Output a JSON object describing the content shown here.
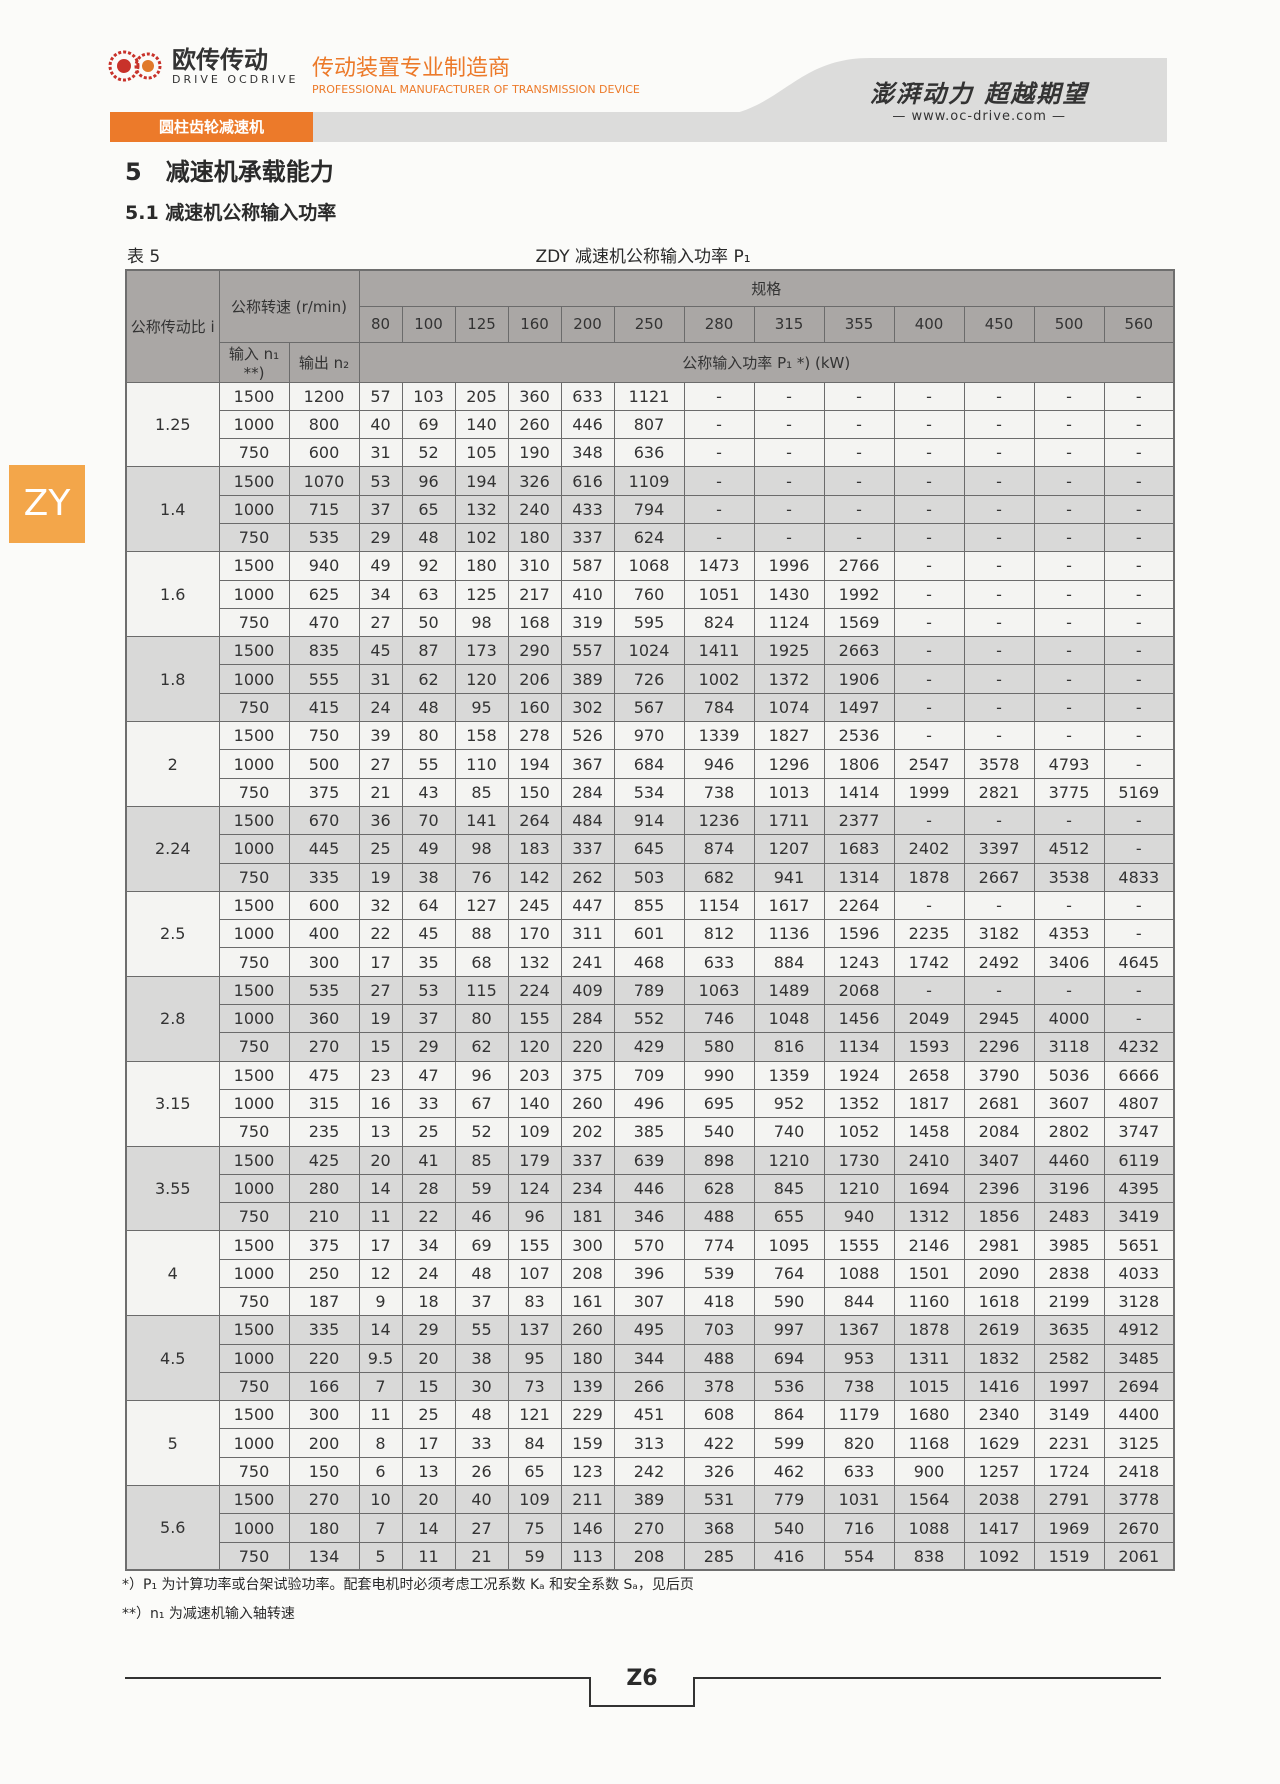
{
  "header": {
    "brand_cn": "欧传传动",
    "brand_en": "DRIVE OCDRIVE",
    "slogan_cn": "传动装置专业制造商",
    "slogan_en": "PROFESSIONAL MANUFACTURER OF TRANSMISSION DEVICE",
    "motto": "澎湃动力 超越期望",
    "website": "www.oc-drive.com",
    "category": "圆柱齿轮减速机",
    "accent": "#ec7a2a"
  },
  "side_tab": "ZY",
  "section_title": "5　减速机承载能力",
  "subsection_title": "5.1  减速机公称输入功率",
  "table_label": "表 5",
  "table_caption": "ZDY 减速机公称输入功率 P₁",
  "table": {
    "h_ratio": "公称传动比 i",
    "h_speed": "公称转速 (r/min)",
    "h_size": "规格",
    "h_input": "输入 n₁ **)",
    "h_output": "输出 n₂",
    "h_power": "公称输入功率 P₁ *) (kW)",
    "sizes": [
      "80",
      "100",
      "125",
      "160",
      "200",
      "250",
      "280",
      "315",
      "355",
      "400",
      "450",
      "500",
      "560"
    ],
    "groups": [
      {
        "i": "1.25",
        "rows": [
          [
            "1500",
            "1200",
            "57",
            "103",
            "205",
            "360",
            "633",
            "1121",
            "-",
            "-",
            "-",
            "-",
            "-",
            "-",
            "-"
          ],
          [
            "1000",
            "800",
            "40",
            "69",
            "140",
            "260",
            "446",
            "807",
            "-",
            "-",
            "-",
            "-",
            "-",
            "-",
            "-"
          ],
          [
            "750",
            "600",
            "31",
            "52",
            "105",
            "190",
            "348",
            "636",
            "-",
            "-",
            "-",
            "-",
            "-",
            "-",
            "-"
          ]
        ]
      },
      {
        "i": "1.4",
        "rows": [
          [
            "1500",
            "1070",
            "53",
            "96",
            "194",
            "326",
            "616",
            "1109",
            "-",
            "-",
            "-",
            "-",
            "-",
            "-",
            "-"
          ],
          [
            "1000",
            "715",
            "37",
            "65",
            "132",
            "240",
            "433",
            "794",
            "-",
            "-",
            "-",
            "-",
            "-",
            "-",
            "-"
          ],
          [
            "750",
            "535",
            "29",
            "48",
            "102",
            "180",
            "337",
            "624",
            "-",
            "-",
            "-",
            "-",
            "-",
            "-",
            "-"
          ]
        ]
      },
      {
        "i": "1.6",
        "rows": [
          [
            "1500",
            "940",
            "49",
            "92",
            "180",
            "310",
            "587",
            "1068",
            "1473",
            "1996",
            "2766",
            "-",
            "-",
            "-",
            "-"
          ],
          [
            "1000",
            "625",
            "34",
            "63",
            "125",
            "217",
            "410",
            "760",
            "1051",
            "1430",
            "1992",
            "-",
            "-",
            "-",
            "-"
          ],
          [
            "750",
            "470",
            "27",
            "50",
            "98",
            "168",
            "319",
            "595",
            "824",
            "1124",
            "1569",
            "-",
            "-",
            "-",
            "-"
          ]
        ]
      },
      {
        "i": "1.8",
        "rows": [
          [
            "1500",
            "835",
            "45",
            "87",
            "173",
            "290",
            "557",
            "1024",
            "1411",
            "1925",
            "2663",
            "-",
            "-",
            "-",
            "-"
          ],
          [
            "1000",
            "555",
            "31",
            "62",
            "120",
            "206",
            "389",
            "726",
            "1002",
            "1372",
            "1906",
            "-",
            "-",
            "-",
            "-"
          ],
          [
            "750",
            "415",
            "24",
            "48",
            "95",
            "160",
            "302",
            "567",
            "784",
            "1074",
            "1497",
            "-",
            "-",
            "-",
            "-"
          ]
        ]
      },
      {
        "i": "2",
        "rows": [
          [
            "1500",
            "750",
            "39",
            "80",
            "158",
            "278",
            "526",
            "970",
            "1339",
            "1827",
            "2536",
            "-",
            "-",
            "-",
            "-"
          ],
          [
            "1000",
            "500",
            "27",
            "55",
            "110",
            "194",
            "367",
            "684",
            "946",
            "1296",
            "1806",
            "2547",
            "3578",
            "4793",
            "-"
          ],
          [
            "750",
            "375",
            "21",
            "43",
            "85",
            "150",
            "284",
            "534",
            "738",
            "1013",
            "1414",
            "1999",
            "2821",
            "3775",
            "5169"
          ]
        ]
      },
      {
        "i": "2.24",
        "rows": [
          [
            "1500",
            "670",
            "36",
            "70",
            "141",
            "264",
            "484",
            "914",
            "1236",
            "1711",
            "2377",
            "-",
            "-",
            "-",
            "-"
          ],
          [
            "1000",
            "445",
            "25",
            "49",
            "98",
            "183",
            "337",
            "645",
            "874",
            "1207",
            "1683",
            "2402",
            "3397",
            "4512",
            "-"
          ],
          [
            "750",
            "335",
            "19",
            "38",
            "76",
            "142",
            "262",
            "503",
            "682",
            "941",
            "1314",
            "1878",
            "2667",
            "3538",
            "4833"
          ]
        ]
      },
      {
        "i": "2.5",
        "rows": [
          [
            "1500",
            "600",
            "32",
            "64",
            "127",
            "245",
            "447",
            "855",
            "1154",
            "1617",
            "2264",
            "-",
            "-",
            "-",
            "-"
          ],
          [
            "1000",
            "400",
            "22",
            "45",
            "88",
            "170",
            "311",
            "601",
            "812",
            "1136",
            "1596",
            "2235",
            "3182",
            "4353",
            "-"
          ],
          [
            "750",
            "300",
            "17",
            "35",
            "68",
            "132",
            "241",
            "468",
            "633",
            "884",
            "1243",
            "1742",
            "2492",
            "3406",
            "4645"
          ]
        ]
      },
      {
        "i": "2.8",
        "rows": [
          [
            "1500",
            "535",
            "27",
            "53",
            "115",
            "224",
            "409",
            "789",
            "1063",
            "1489",
            "2068",
            "-",
            "-",
            "-",
            "-"
          ],
          [
            "1000",
            "360",
            "19",
            "37",
            "80",
            "155",
            "284",
            "552",
            "746",
            "1048",
            "1456",
            "2049",
            "2945",
            "4000",
            "-"
          ],
          [
            "750",
            "270",
            "15",
            "29",
            "62",
            "120",
            "220",
            "429",
            "580",
            "816",
            "1134",
            "1593",
            "2296",
            "3118",
            "4232"
          ]
        ]
      },
      {
        "i": "3.15",
        "rows": [
          [
            "1500",
            "475",
            "23",
            "47",
            "96",
            "203",
            "375",
            "709",
            "990",
            "1359",
            "1924",
            "2658",
            "3790",
            "5036",
            "6666"
          ],
          [
            "1000",
            "315",
            "16",
            "33",
            "67",
            "140",
            "260",
            "496",
            "695",
            "952",
            "1352",
            "1817",
            "2681",
            "3607",
            "4807"
          ],
          [
            "750",
            "235",
            "13",
            "25",
            "52",
            "109",
            "202",
            "385",
            "540",
            "740",
            "1052",
            "1458",
            "2084",
            "2802",
            "3747"
          ]
        ]
      },
      {
        "i": "3.55",
        "rows": [
          [
            "1500",
            "425",
            "20",
            "41",
            "85",
            "179",
            "337",
            "639",
            "898",
            "1210",
            "1730",
            "2410",
            "3407",
            "4460",
            "6119"
          ],
          [
            "1000",
            "280",
            "14",
            "28",
            "59",
            "124",
            "234",
            "446",
            "628",
            "845",
            "1210",
            "1694",
            "2396",
            "3196",
            "4395"
          ],
          [
            "750",
            "210",
            "11",
            "22",
            "46",
            "96",
            "181",
            "346",
            "488",
            "655",
            "940",
            "1312",
            "1856",
            "2483",
            "3419"
          ]
        ]
      },
      {
        "i": "4",
        "rows": [
          [
            "1500",
            "375",
            "17",
            "34",
            "69",
            "155",
            "300",
            "570",
            "774",
            "1095",
            "1555",
            "2146",
            "2981",
            "3985",
            "5651"
          ],
          [
            "1000",
            "250",
            "12",
            "24",
            "48",
            "107",
            "208",
            "396",
            "539",
            "764",
            "1088",
            "1501",
            "2090",
            "2838",
            "4033"
          ],
          [
            "750",
            "187",
            "9",
            "18",
            "37",
            "83",
            "161",
            "307",
            "418",
            "590",
            "844",
            "1160",
            "1618",
            "2199",
            "3128"
          ]
        ]
      },
      {
        "i": "4.5",
        "rows": [
          [
            "1500",
            "335",
            "14",
            "29",
            "55",
            "137",
            "260",
            "495",
            "703",
            "997",
            "1367",
            "1878",
            "2619",
            "3635",
            "4912"
          ],
          [
            "1000",
            "220",
            "9.5",
            "20",
            "38",
            "95",
            "180",
            "344",
            "488",
            "694",
            "953",
            "1311",
            "1832",
            "2582",
            "3485"
          ],
          [
            "750",
            "166",
            "7",
            "15",
            "30",
            "73",
            "139",
            "266",
            "378",
            "536",
            "738",
            "1015",
            "1416",
            "1997",
            "2694"
          ]
        ]
      },
      {
        "i": "5",
        "rows": [
          [
            "1500",
            "300",
            "11",
            "25",
            "48",
            "121",
            "229",
            "451",
            "608",
            "864",
            "1179",
            "1680",
            "2340",
            "3149",
            "4400"
          ],
          [
            "1000",
            "200",
            "8",
            "17",
            "33",
            "84",
            "159",
            "313",
            "422",
            "599",
            "820",
            "1168",
            "1629",
            "2231",
            "3125"
          ],
          [
            "750",
            "150",
            "6",
            "13",
            "26",
            "65",
            "123",
            "242",
            "326",
            "462",
            "633",
            "900",
            "1257",
            "1724",
            "2418"
          ]
        ]
      },
      {
        "i": "5.6",
        "rows": [
          [
            "1500",
            "270",
            "10",
            "20",
            "40",
            "109",
            "211",
            "389",
            "531",
            "779",
            "1031",
            "1564",
            "2038",
            "2791",
            "3778"
          ],
          [
            "1000",
            "180",
            "7",
            "14",
            "27",
            "75",
            "146",
            "270",
            "368",
            "540",
            "716",
            "1088",
            "1417",
            "1969",
            "2670"
          ],
          [
            "750",
            "134",
            "5",
            "11",
            "21",
            "59",
            "113",
            "208",
            "285",
            "416",
            "554",
            "838",
            "1092",
            "1519",
            "2061"
          ]
        ]
      }
    ]
  },
  "footnotes": [
    "*）P₁ 为计算功率或台架试验功率。配套电机时必须考虑工况系数 Kₐ 和安全系数 Sₐ，见后页",
    "**）n₁ 为减速机输入轴转速"
  ],
  "page_number": "Z6"
}
